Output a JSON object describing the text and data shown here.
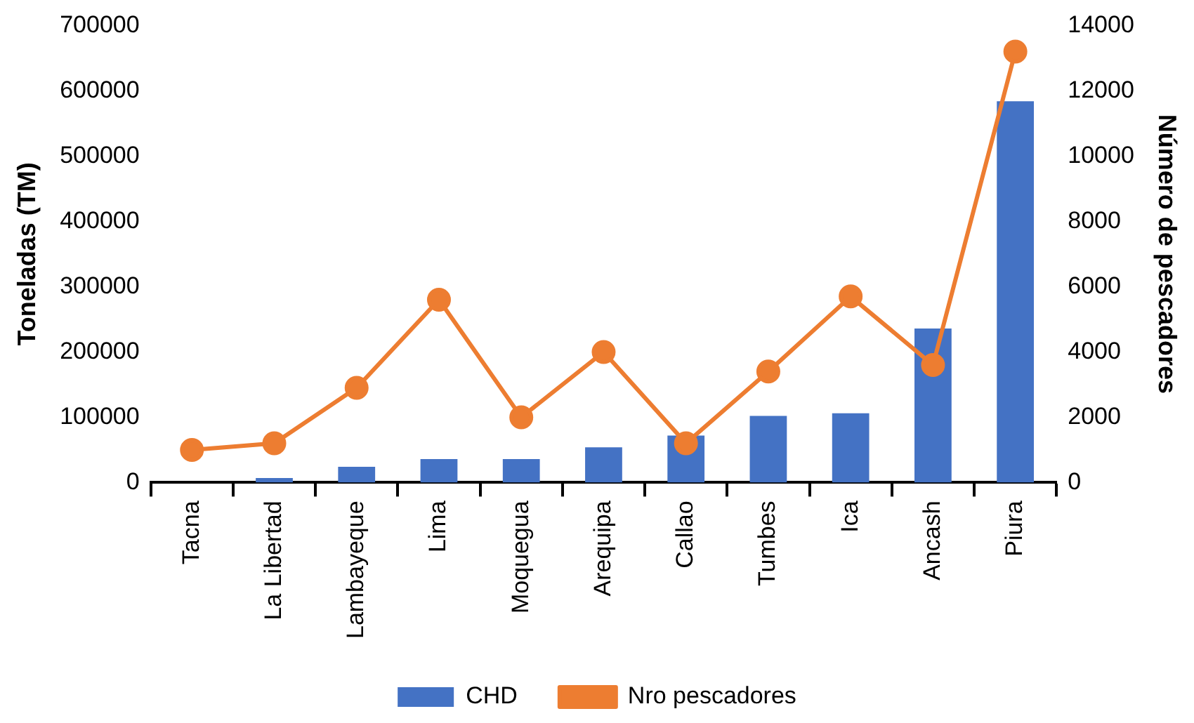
{
  "chart_data": {
    "type": "bar",
    "ylabel": "Toneladas (TM)",
    "y2label": "Número de pescadores",
    "categories": [
      "Tacna",
      "La Libertad",
      "Lambayeque",
      "Lima",
      "Moquegua",
      "Arequipa",
      "Callao",
      "Tumbes",
      "Ica",
      "Ancash",
      "Piura"
    ],
    "series": [
      {
        "name": "CHD",
        "color": "#4472c4",
        "values": [
          null,
          7000,
          24000,
          36000,
          36000,
          54000,
          72000,
          102000,
          106000,
          236000,
          584000
        ]
      },
      {
        "name": "Nro pescadores",
        "type": "line",
        "axis": "y2",
        "color": "#ed7d31",
        "marker": "circle",
        "values": [
          1000,
          1200,
          2900,
          5600,
          2000,
          4000,
          1200,
          3400,
          5700,
          3600,
          13200
        ]
      }
    ],
    "ylim": [
      0,
      700000
    ],
    "yticks": [
      0,
      100000,
      200000,
      300000,
      400000,
      500000,
      600000,
      700000
    ],
    "y2lim": [
      0,
      14000
    ],
    "y2ticks": [
      0,
      2000,
      4000,
      6000,
      8000,
      10000,
      12000,
      14000
    ],
    "grid": false,
    "legend": "bottom"
  }
}
